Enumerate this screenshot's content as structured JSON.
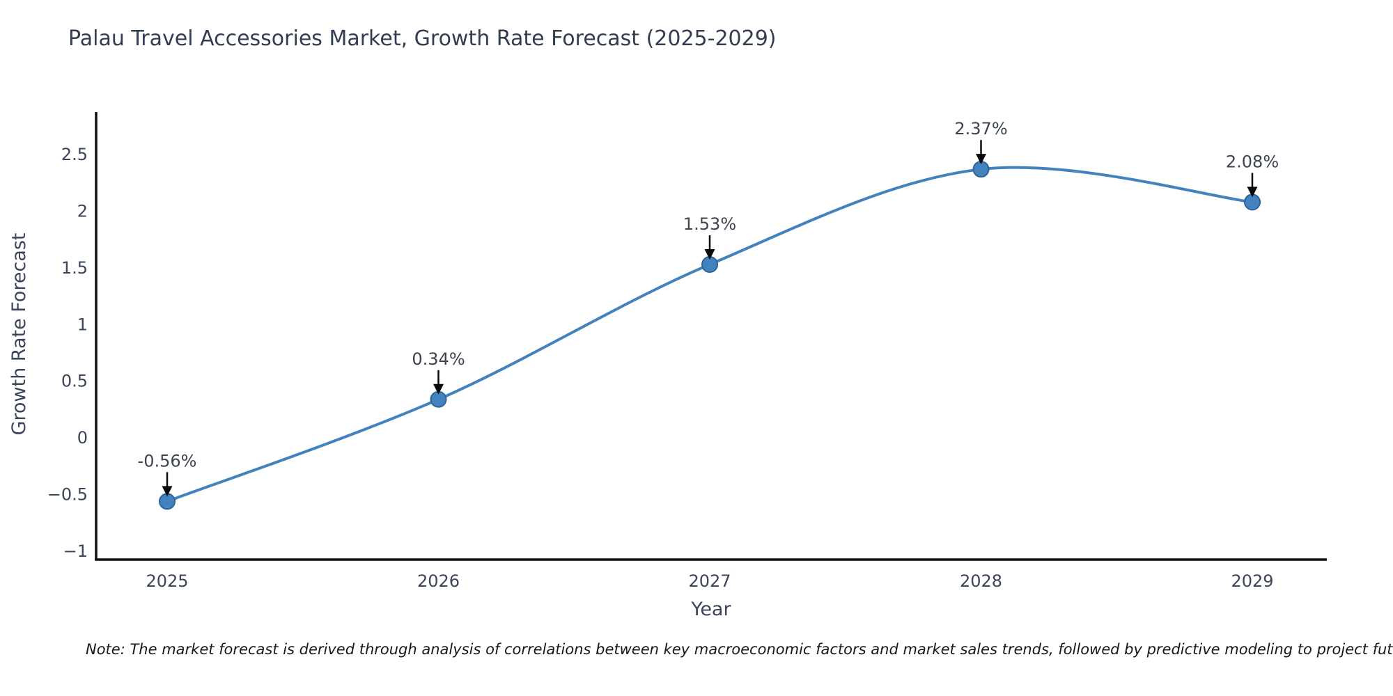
{
  "title": "Palau Travel Accessories Market, Growth Rate Forecast (2025-2029)",
  "note": "Note: The market forecast is derived through analysis of correlations between key macroeconomic factors and market sales trends, followed by predictive modeling to project future sales performance.",
  "chart_data": {
    "type": "line",
    "title": "Palau Travel Accessories Market, Growth Rate Forecast (2025-2029)",
    "x": [
      2025,
      2026,
      2027,
      2028,
      2029
    ],
    "xtick_labels": [
      "2025",
      "2026",
      "2027",
      "2028",
      "2029"
    ],
    "values": [
      -0.56,
      0.34,
      1.53,
      2.37,
      2.08
    ],
    "point_labels": [
      "-0.56%",
      "0.34%",
      "1.53%",
      "2.37%",
      "2.08%"
    ],
    "xlabel": "Year",
    "ylabel": "Growth Rate Forecast",
    "ylim": [
      -1,
      2.86
    ],
    "yticks": [
      -1,
      -0.5,
      0,
      0.5,
      1,
      1.5,
      2,
      2.5
    ],
    "ytick_labels": [
      "−1",
      "−0.5",
      "0",
      "0.5",
      "1",
      "1.5",
      "2",
      "2.5"
    ],
    "grid": false,
    "legend": false,
    "smooth": true,
    "colors": {
      "line": "#4383bd",
      "marker_fill": "#4383bd",
      "marker_edge": "#2d6398",
      "axis": "#111111",
      "tick_text": "#3a455c",
      "axis_label_text": "#3a455c",
      "title_text": "#323d52",
      "annotation_text": "#3d4350",
      "annotation_arrow": "#0a0a0a"
    }
  }
}
